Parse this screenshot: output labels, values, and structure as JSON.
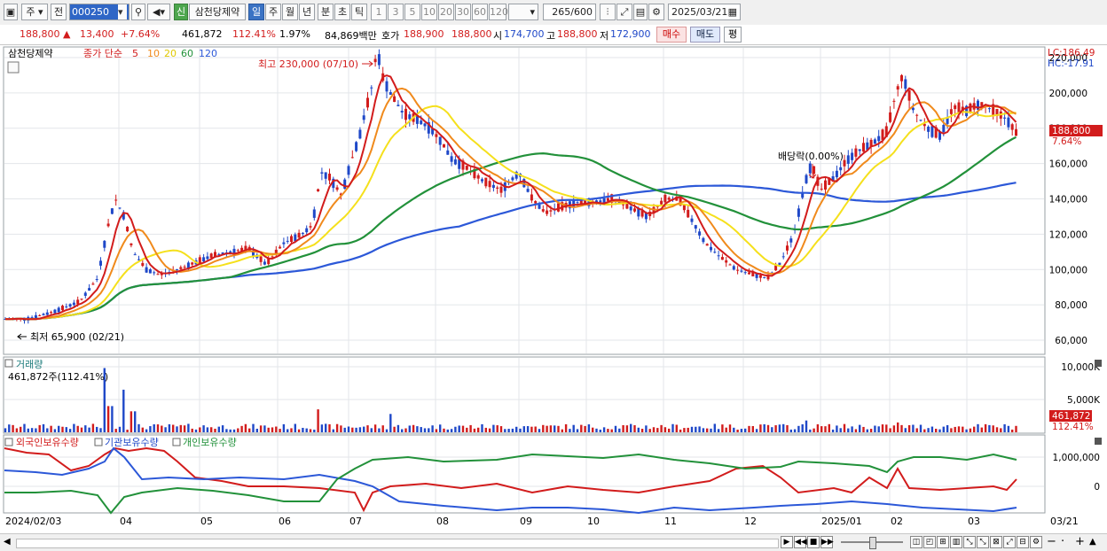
{
  "toolbar": {
    "market_type": "주",
    "period_prefix": "전",
    "stock_code": "000250",
    "credit_badge": "신",
    "stock_name": "삼천당제약",
    "periods": [
      "일",
      "주",
      "월",
      "년",
      "분",
      "초",
      "틱"
    ],
    "active_period": "일",
    "intervals": [
      "1",
      "3",
      "5",
      "10",
      "20",
      "30",
      "60",
      "120"
    ],
    "count": "265",
    "count_total": "/600",
    "date": "2025/03/21"
  },
  "quote": {
    "price": "188,800",
    "change": "13,400",
    "change_pct": "+7.64%",
    "volume": "461,872",
    "volume_ratio": "112.41%",
    "turnover": "1.97%",
    "amount": "84,869백만",
    "bid_label": "호가",
    "bid_ask": "188,900",
    "bid_bid": "188,800",
    "open_label": "시",
    "open": "174,700",
    "high_label": "고",
    "high": "188,800",
    "low_label": "저",
    "low": "172,900",
    "buy_btn": "매수",
    "sell_btn": "매도",
    "eval_btn": "평"
  },
  "main_panel": {
    "stock_name": "삼천당제약",
    "indicator": "종가 단순",
    "ma_labels": [
      "5",
      "10",
      "20",
      "60",
      "120"
    ],
    "lc": "LC:186.49",
    "hc": "HC:-17.91",
    "high_annotation": "최고 230,000 (07/10)",
    "low_annotation": "최저 65,900 (02/21)",
    "dividend_annotation": "배당락(0.00%)",
    "price_axis": [
      "220,000",
      "200,000",
      "180,000",
      "160,000",
      "140,000",
      "120,000",
      "100,000",
      "80,000",
      "60,000"
    ],
    "current_price_tag": "188,800",
    "current_pct_tag": "7.64%"
  },
  "volume_panel": {
    "title": "거래량",
    "info": "461,872주(112.41%)",
    "axis": [
      "10,000K",
      "5,000K"
    ],
    "tag_value": "461,872",
    "tag_pct": "112.41%"
  },
  "holdings_panel": {
    "legend": [
      "외국인보유수량",
      "기관보유수량",
      "개인보유수량"
    ],
    "axis": [
      "1,000,000",
      "0"
    ]
  },
  "x_axis": {
    "labels": [
      "2024/02/03",
      "04",
      "05",
      "06",
      "07",
      "08",
      "09",
      "10",
      "11",
      "12",
      "2025/01",
      "02",
      "03"
    ],
    "end_label": "03/21"
  },
  "colors": {
    "ma5": "#d21c1c",
    "ma10": "#f08a1c",
    "ma20": "#f5e01c",
    "ma60": "#22913a",
    "ma120": "#2c58d8",
    "up": "#d21c1c",
    "down": "#1f48c8"
  }
}
